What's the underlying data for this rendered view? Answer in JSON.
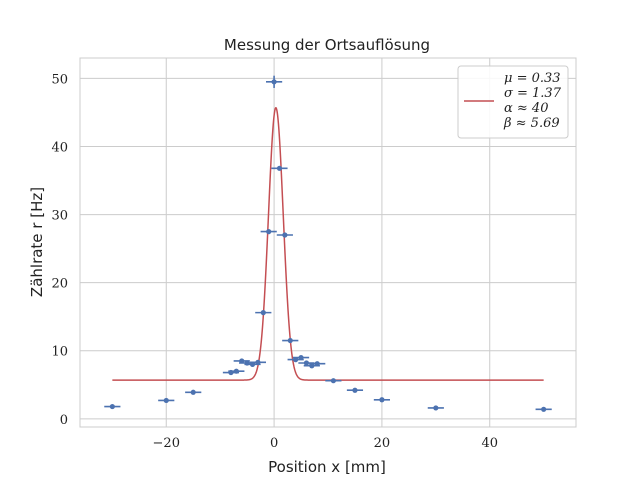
{
  "chart_data": {
    "type": "scatter",
    "title": "Messung der Ortsauflösung",
    "xlabel": "Position x [mm]",
    "ylabel": "Zählrate r [Hz]",
    "xlim": [
      -36,
      56
    ],
    "ylim": [
      -1.2,
      53
    ],
    "xticks": [
      -20,
      0,
      20,
      40
    ],
    "xtick_labels": [
      "−20",
      "0",
      "20",
      "40"
    ],
    "yticks": [
      0,
      10,
      20,
      30,
      40,
      50
    ],
    "ytick_labels": [
      "0",
      "10",
      "20",
      "30",
      "40",
      "50"
    ],
    "grid": true,
    "legend_position": "top-right",
    "legend_lines": [
      "μ = 0.33",
      "σ = 1.37",
      "α ≈ 40",
      "β ≈ 5.69"
    ],
    "colors": {
      "data": "#4c72b0",
      "fit": "#c44e52",
      "grid": "#cccccc",
      "axes": "#cccccc"
    },
    "series": [
      {
        "type": "errorbar",
        "points": [
          {
            "x": -30,
            "y": 1.8,
            "xerr": 1.5
          },
          {
            "x": -20,
            "y": 2.7,
            "xerr": 1.5
          },
          {
            "x": -15,
            "y": 3.9,
            "xerr": 1.5
          },
          {
            "x": -8,
            "y": 6.8,
            "xerr": 1.5
          },
          {
            "x": -7,
            "y": 7.0,
            "xerr": 1.5
          },
          {
            "x": -6,
            "y": 8.5,
            "xerr": 1.5
          },
          {
            "x": -5,
            "y": 8.2,
            "xerr": 1.5
          },
          {
            "x": -4,
            "y": 8.0,
            "xerr": 1.5
          },
          {
            "x": -3,
            "y": 8.3,
            "xerr": 1.5
          },
          {
            "x": -2,
            "y": 15.6,
            "xerr": 1.5
          },
          {
            "x": -1,
            "y": 27.5,
            "xerr": 1.5
          },
          {
            "x": 0,
            "y": 49.5,
            "xerr": 1.5,
            "yerr": 0.9
          },
          {
            "x": 1,
            "y": 36.8,
            "xerr": 1.5
          },
          {
            "x": 2,
            "y": 27.0,
            "xerr": 1.5
          },
          {
            "x": 3,
            "y": 11.5,
            "xerr": 1.5
          },
          {
            "x": 4,
            "y": 8.7,
            "xerr": 1.5
          },
          {
            "x": 5,
            "y": 9.0,
            "xerr": 1.5
          },
          {
            "x": 6,
            "y": 8.2,
            "xerr": 1.5
          },
          {
            "x": 7,
            "y": 7.8,
            "xerr": 1.5
          },
          {
            "x": 8,
            "y": 8.1,
            "xerr": 1.5
          },
          {
            "x": 11,
            "y": 5.6,
            "xerr": 1.5
          },
          {
            "x": 15,
            "y": 4.2,
            "xerr": 1.5
          },
          {
            "x": 20,
            "y": 2.8,
            "xerr": 1.5
          },
          {
            "x": 30,
            "y": 1.6,
            "xerr": 1.5
          },
          {
            "x": 50,
            "y": 1.4,
            "xerr": 1.5
          }
        ]
      },
      {
        "type": "line",
        "function": "gaussian",
        "mu": 0.33,
        "sigma": 1.37,
        "alpha": 40,
        "beta": 5.69,
        "x_range": [
          -30,
          50
        ]
      }
    ]
  }
}
